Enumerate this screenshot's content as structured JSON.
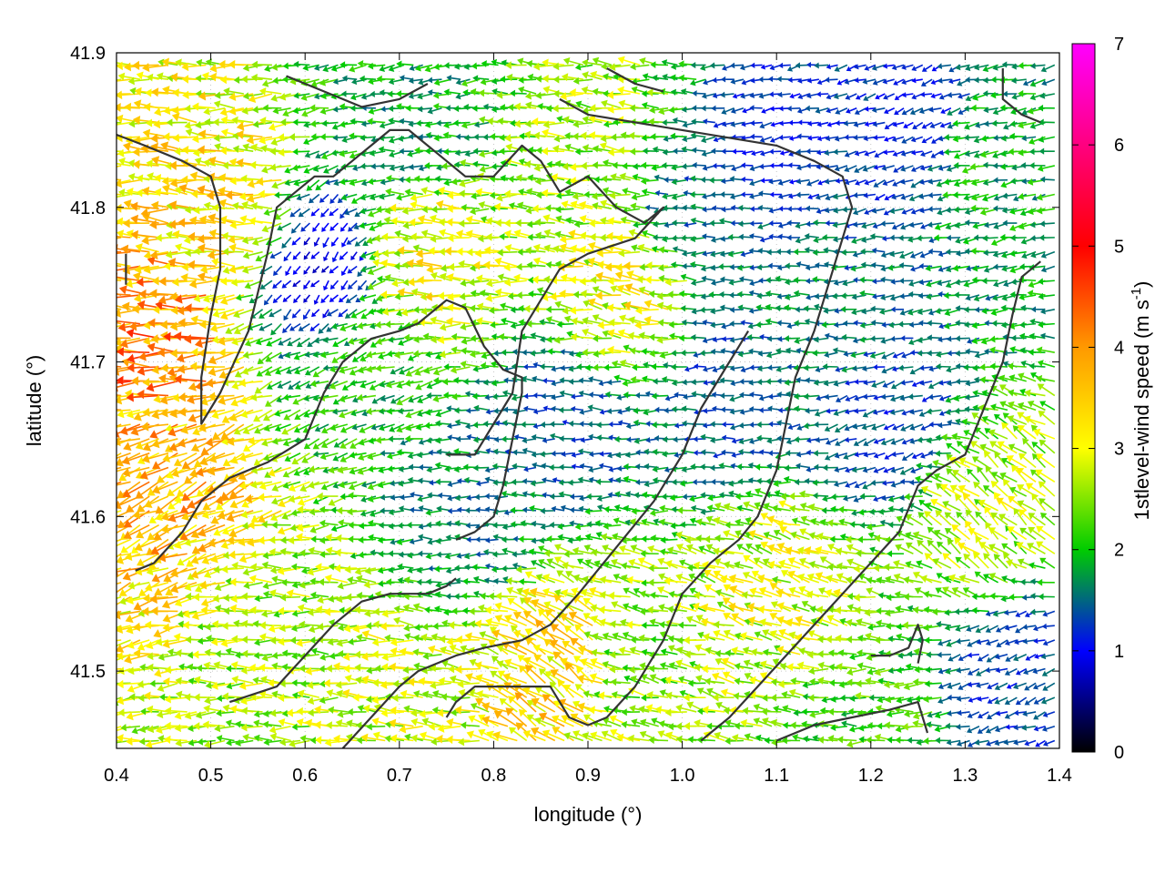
{
  "chart_data": {
    "type": "vector-field",
    "xlabel": "longitude (°)",
    "ylabel": "latitude (°)",
    "xlim": [
      0.4,
      1.4
    ],
    "ylim": [
      41.45,
      41.9
    ],
    "xticks": [
      "0.4",
      "0.5",
      "0.6",
      "0.7",
      "0.8",
      "0.9",
      "1.0",
      "1.1",
      "1.2",
      "1.3",
      "1.4"
    ],
    "yticks": [
      "41.5",
      "41.6",
      "41.7",
      "41.8",
      "41.9"
    ],
    "grid": true,
    "colorbar": {
      "title_main": "1stlevel-wind speed (m s",
      "title_sup": "-1",
      "title_end": ")",
      "min": 0,
      "max": 7,
      "ticks": [
        "0",
        "1",
        "2",
        "3",
        "4",
        "5",
        "6",
        "7"
      ],
      "colors": [
        "#000000",
        "#0000ff",
        "#00cc00",
        "#ffff00",
        "#ff9900",
        "#ff0000",
        "#ff00ff"
      ]
    },
    "grid_spacing_deg": 0.01,
    "regions": [
      {
        "lon": 0.45,
        "lat": 41.72,
        "speed": 4.0,
        "dir_deg": 180
      },
      {
        "lon": 0.52,
        "lat": 41.8,
        "speed": 3.3,
        "dir_deg": 175
      },
      {
        "lon": 0.48,
        "lat": 41.62,
        "speed": 3.6,
        "dir_deg": 205
      },
      {
        "lon": 0.58,
        "lat": 41.52,
        "speed": 2.6,
        "dir_deg": 180
      },
      {
        "lon": 0.62,
        "lat": 41.76,
        "speed": 0.9,
        "dir_deg": 230
      },
      {
        "lon": 0.66,
        "lat": 41.7,
        "speed": 2.0,
        "dir_deg": 200
      },
      {
        "lon": 0.74,
        "lat": 41.77,
        "speed": 3.0,
        "dir_deg": 175
      },
      {
        "lon": 0.72,
        "lat": 41.85,
        "speed": 1.8,
        "dir_deg": 185
      },
      {
        "lon": 0.78,
        "lat": 41.6,
        "speed": 1.6,
        "dir_deg": 180
      },
      {
        "lon": 0.88,
        "lat": 41.66,
        "speed": 1.4,
        "dir_deg": 180
      },
      {
        "lon": 0.95,
        "lat": 41.75,
        "speed": 3.0,
        "dir_deg": 170
      },
      {
        "lon": 0.92,
        "lat": 41.85,
        "speed": 2.6,
        "dir_deg": 175
      },
      {
        "lon": 1.02,
        "lat": 41.8,
        "speed": 1.5,
        "dir_deg": 180
      },
      {
        "lon": 1.1,
        "lat": 41.84,
        "speed": 1.2,
        "dir_deg": 190
      },
      {
        "lon": 1.05,
        "lat": 41.68,
        "speed": 1.4,
        "dir_deg": 185
      },
      {
        "lon": 1.16,
        "lat": 41.73,
        "speed": 1.6,
        "dir_deg": 180
      },
      {
        "lon": 1.25,
        "lat": 41.85,
        "speed": 1.2,
        "dir_deg": 200
      },
      {
        "lon": 1.33,
        "lat": 41.83,
        "speed": 1.9,
        "dir_deg": 190
      },
      {
        "lon": 1.22,
        "lat": 41.66,
        "speed": 1.3,
        "dir_deg": 200
      },
      {
        "lon": 1.33,
        "lat": 41.6,
        "speed": 2.7,
        "dir_deg": 140
      },
      {
        "lon": 1.12,
        "lat": 41.55,
        "speed": 2.9,
        "dir_deg": 160
      },
      {
        "lon": 0.95,
        "lat": 41.5,
        "speed": 2.5,
        "dir_deg": 170
      },
      {
        "lon": 0.88,
        "lat": 41.5,
        "speed": 3.4,
        "dir_deg": 145
      },
      {
        "lon": 0.72,
        "lat": 41.48,
        "speed": 2.8,
        "dir_deg": 175
      },
      {
        "lon": 1.2,
        "lat": 41.48,
        "speed": 2.2,
        "dir_deg": 180
      },
      {
        "lon": 1.36,
        "lat": 41.5,
        "speed": 1.3,
        "dir_deg": 200
      }
    ],
    "contours": [
      [
        [
          0.4,
          41.847
        ],
        [
          0.43,
          41.84
        ],
        [
          0.47,
          41.83
        ],
        [
          0.5,
          41.82
        ],
        [
          0.51,
          41.8
        ],
        [
          0.51,
          41.76
        ],
        [
          0.5,
          41.73
        ],
        [
          0.49,
          41.69
        ],
        [
          0.49,
          41.66
        ],
        [
          0.51,
          41.68
        ],
        [
          0.54,
          41.72
        ],
        [
          0.56,
          41.77
        ],
        [
          0.57,
          41.8
        ],
        [
          0.59,
          41.81
        ],
        [
          0.61,
          41.82
        ],
        [
          0.63,
          41.82
        ],
        [
          0.65,
          41.83
        ],
        [
          0.67,
          41.84
        ],
        [
          0.69,
          41.85
        ],
        [
          0.71,
          41.85
        ],
        [
          0.73,
          41.84
        ],
        [
          0.75,
          41.83
        ],
        [
          0.77,
          41.82
        ],
        [
          0.8,
          41.82
        ],
        [
          0.83,
          41.84
        ],
        [
          0.85,
          41.83
        ],
        [
          0.87,
          41.81
        ],
        [
          0.9,
          41.82
        ],
        [
          0.93,
          41.8
        ],
        [
          0.96,
          41.79
        ],
        [
          0.98,
          41.8
        ],
        [
          0.95,
          41.78
        ],
        [
          0.9,
          41.77
        ],
        [
          0.87,
          41.76
        ],
        [
          0.85,
          41.74
        ],
        [
          0.83,
          41.72
        ],
        [
          0.82,
          41.68
        ],
        [
          0.8,
          41.66
        ],
        [
          0.78,
          41.64
        ],
        [
          0.75,
          41.64
        ]
      ],
      [
        [
          0.41,
          41.77
        ],
        [
          0.41,
          41.75
        ]
      ],
      [
        [
          0.42,
          41.565
        ],
        [
          0.44,
          41.57
        ],
        [
          0.47,
          41.59
        ],
        [
          0.49,
          41.61
        ],
        [
          0.52,
          41.625
        ],
        [
          0.56,
          41.635
        ],
        [
          0.6,
          41.65
        ],
        [
          0.62,
          41.68
        ],
        [
          0.64,
          41.7
        ],
        [
          0.67,
          41.715
        ],
        [
          0.7,
          41.72
        ],
        [
          0.72,
          41.725
        ],
        [
          0.73,
          41.73
        ],
        [
          0.75,
          41.74
        ],
        [
          0.77,
          41.735
        ],
        [
          0.79,
          41.71
        ],
        [
          0.81,
          41.695
        ],
        [
          0.83,
          41.69
        ],
        [
          0.83,
          41.68
        ],
        [
          0.82,
          41.65
        ],
        [
          0.81,
          41.62
        ],
        [
          0.8,
          41.6
        ],
        [
          0.78,
          41.59
        ],
        [
          0.76,
          41.585
        ]
      ],
      [
        [
          0.52,
          41.48
        ],
        [
          0.57,
          41.49
        ],
        [
          0.6,
          41.51
        ],
        [
          0.63,
          41.53
        ],
        [
          0.66,
          41.545
        ],
        [
          0.69,
          41.55
        ],
        [
          0.71,
          41.55
        ],
        [
          0.73,
          41.55
        ],
        [
          0.75,
          41.555
        ],
        [
          0.76,
          41.56
        ]
      ],
      [
        [
          0.64,
          41.45
        ],
        [
          0.67,
          41.47
        ],
        [
          0.7,
          41.49
        ],
        [
          0.72,
          41.5
        ],
        [
          0.74,
          41.505
        ],
        [
          0.76,
          41.51
        ],
        [
          0.79,
          41.515
        ],
        [
          0.83,
          41.52
        ],
        [
          0.86,
          41.53
        ],
        [
          0.89,
          41.55
        ],
        [
          0.93,
          41.58
        ],
        [
          0.97,
          41.61
        ],
        [
          1.0,
          41.64
        ],
        [
          1.02,
          41.67
        ],
        [
          1.04,
          41.69
        ],
        [
          1.06,
          41.71
        ],
        [
          1.07,
          41.72
        ]
      ],
      [
        [
          0.75,
          41.47
        ],
        [
          0.76,
          41.48
        ],
        [
          0.78,
          41.49
        ],
        [
          0.82,
          41.49
        ],
        [
          0.86,
          41.49
        ],
        [
          0.88,
          41.47
        ],
        [
          0.9,
          41.465
        ],
        [
          0.92,
          41.47
        ],
        [
          0.95,
          41.49
        ],
        [
          0.98,
          41.52
        ],
        [
          1.0,
          41.55
        ],
        [
          1.03,
          41.57
        ],
        [
          1.06,
          41.585
        ],
        [
          1.08,
          41.6
        ],
        [
          1.1,
          41.63
        ],
        [
          1.11,
          41.66
        ],
        [
          1.12,
          41.69
        ],
        [
          1.14,
          41.72
        ],
        [
          1.16,
          41.76
        ],
        [
          1.18,
          41.8
        ],
        [
          1.17,
          41.82
        ],
        [
          1.14,
          41.83
        ],
        [
          1.1,
          41.84
        ],
        [
          1.05,
          41.845
        ],
        [
          1.0,
          41.85
        ],
        [
          0.95,
          41.855
        ],
        [
          0.9,
          41.86
        ],
        [
          0.87,
          41.87
        ]
      ],
      [
        [
          1.02,
          41.455
        ],
        [
          1.05,
          41.47
        ],
        [
          1.08,
          41.49
        ],
        [
          1.11,
          41.51
        ],
        [
          1.14,
          41.53
        ],
        [
          1.17,
          41.55
        ],
        [
          1.2,
          41.57
        ],
        [
          1.23,
          41.59
        ],
        [
          1.25,
          41.62
        ],
        [
          1.27,
          41.63
        ],
        [
          1.3,
          41.64
        ],
        [
          1.32,
          41.67
        ],
        [
          1.34,
          41.7
        ],
        [
          1.35,
          41.73
        ],
        [
          1.36,
          41.755
        ],
        [
          1.38,
          41.765
        ]
      ],
      [
        [
          1.1,
          41.455
        ],
        [
          1.14,
          41.465
        ],
        [
          1.18,
          41.47
        ],
        [
          1.22,
          41.475
        ],
        [
          1.25,
          41.48
        ],
        [
          1.26,
          41.46
        ]
      ],
      [
        [
          1.2,
          41.51
        ],
        [
          1.22,
          41.51
        ],
        [
          1.24,
          41.515
        ],
        [
          1.25,
          41.53
        ],
        [
          1.255,
          41.52
        ],
        [
          1.25,
          41.505
        ]
      ],
      [
        [
          1.34,
          41.89
        ],
        [
          1.34,
          41.87
        ],
        [
          1.36,
          41.86
        ],
        [
          1.38,
          41.855
        ]
      ],
      [
        [
          0.92,
          41.89
        ],
        [
          0.95,
          41.88
        ],
        [
          0.98,
          41.875
        ]
      ],
      [
        [
          0.58,
          41.885
        ],
        [
          0.62,
          41.875
        ],
        [
          0.66,
          41.865
        ],
        [
          0.7,
          41.87
        ],
        [
          0.73,
          41.88
        ]
      ]
    ]
  }
}
